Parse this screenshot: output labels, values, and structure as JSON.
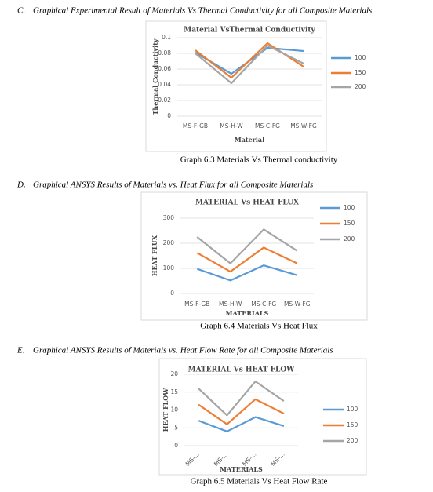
{
  "sections": [
    {
      "label": "C.",
      "heading": "Graphical Experimental Result of Materials Vs Thermal Conductivity for all Composite Materials",
      "caption": "Graph 6.3 Materials Vs Thermal conductivity"
    },
    {
      "label": "D.",
      "heading": "Graphical ANSYS Results of Materials vs. Heat Flux for all Composite Materials",
      "caption": "Graph 6.4 Materials Vs Heat Flux"
    },
    {
      "label": "E.",
      "heading": "Graphical ANSYS Results of Materials vs. Heat Flow Rate for all Composite Materials",
      "caption": "Graph 6.5 Materials Vs Heat Flow Rate"
    }
  ],
  "chart_data": [
    {
      "type": "line",
      "title": "Material VsThermal Conductivity",
      "x_label": "Material",
      "y_label": "Thermal Conductivity",
      "categories": [
        "MS-F-GB",
        "MS-H-W",
        "MS-C-FG",
        "MS-W-FG"
      ],
      "series": [
        {
          "name": "100",
          "color": "#5b9bd5",
          "values": [
            0.081,
            0.054,
            0.087,
            0.083
          ]
        },
        {
          "name": "150",
          "color": "#ed7d31",
          "values": [
            0.084,
            0.049,
            0.093,
            0.063
          ]
        },
        {
          "name": "200",
          "color": "#a5a5a5",
          "values": [
            0.08,
            0.042,
            0.09,
            0.067
          ]
        }
      ],
      "ylim": [
        0,
        0.1
      ],
      "yticks": [
        0,
        0.02,
        0.04,
        0.06,
        0.08,
        0.1
      ],
      "grid": true,
      "legend": "right"
    },
    {
      "type": "line",
      "title": "MATERIAL Vs HEAT FLUX",
      "x_label": "MATERIALS",
      "y_label": "HEAT FLUX",
      "categories": [
        "MS-F-GB",
        "MS-H-W",
        "MS-C-FG",
        "MS-W-FG"
      ],
      "series": [
        {
          "name": "100",
          "color": "#5b9bd5",
          "values": [
            98,
            52,
            112,
            73
          ]
        },
        {
          "name": "150",
          "color": "#ed7d31",
          "values": [
            162,
            87,
            183,
            120
          ]
        },
        {
          "name": "200",
          "color": "#a5a5a5",
          "values": [
            225,
            120,
            255,
            170
          ]
        }
      ],
      "ylim": [
        0,
        300
      ],
      "yticks": [
        0,
        100,
        200,
        300
      ],
      "grid": true,
      "legend": "right"
    },
    {
      "type": "line",
      "title": "MATERIAL Vs HEAT FLOW",
      "x_label": "MATERIALS",
      "y_label": "HEAT FLOW",
      "categories": [
        "MS-...",
        "MS-...",
        "MS-...",
        "MS-..."
      ],
      "series": [
        {
          "name": "100",
          "color": "#5b9bd5",
          "values": [
            7,
            4,
            8,
            5.5
          ]
        },
        {
          "name": "150",
          "color": "#ed7d31",
          "values": [
            11.5,
            6,
            13,
            9
          ]
        },
        {
          "name": "200",
          "color": "#a5a5a5",
          "values": [
            16,
            8.5,
            18,
            12.5
          ]
        }
      ],
      "ylim": [
        0,
        20
      ],
      "yticks": [
        0,
        5,
        10,
        15,
        20
      ],
      "grid": true,
      "legend": "right",
      "rotate_labels": true
    }
  ]
}
